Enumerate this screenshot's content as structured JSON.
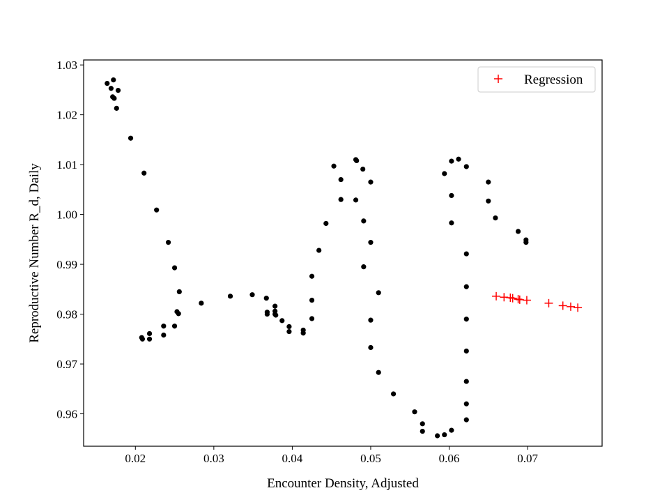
{
  "chart_data": {
    "type": "scatter",
    "title": "",
    "xlabel": "Encounter Density, Adjusted",
    "ylabel": "Reproductive Number R_d, Daily",
    "xlim": [
      0.0134,
      0.0795
    ],
    "ylim": [
      0.9535,
      1.031
    ],
    "xticks": [
      0.02,
      0.03,
      0.04,
      0.05,
      0.06,
      0.07
    ],
    "xtick_labels": [
      "0.02",
      "0.03",
      "0.04",
      "0.05",
      "0.06",
      "0.07"
    ],
    "yticks": [
      0.96,
      0.97,
      0.98,
      0.99,
      1.0,
      1.01,
      1.02,
      1.03
    ],
    "ytick_labels": [
      "0.96",
      "0.97",
      "0.98",
      "0.99",
      "1.00",
      "1.01",
      "1.02",
      "1.03"
    ],
    "grid": false,
    "legend_position": "top-right",
    "colors": {
      "observed": "#000000",
      "regression": "#ff0000"
    },
    "series": [
      {
        "marker": "dot",
        "color": "#000000",
        "points": [
          [
            0.0164,
            1.0263
          ],
          [
            0.0169,
            1.0253
          ],
          [
            0.0172,
            1.027
          ],
          [
            0.0171,
            1.0236
          ],
          [
            0.0173,
            1.0233
          ],
          [
            0.0178,
            1.0249
          ],
          [
            0.0176,
            1.0213
          ],
          [
            0.0194,
            1.0153
          ],
          [
            0.0211,
            1.0083
          ],
          [
            0.0227,
            1.0009
          ],
          [
            0.0242,
            0.9944
          ],
          [
            0.025,
            0.9893
          ],
          [
            0.0256,
            0.9845
          ],
          [
            0.0253,
            0.9805
          ],
          [
            0.0255,
            0.9801
          ],
          [
            0.025,
            0.9776
          ],
          [
            0.0236,
            0.9776
          ],
          [
            0.0236,
            0.9758
          ],
          [
            0.0218,
            0.9761
          ],
          [
            0.0218,
            0.975
          ],
          [
            0.0208,
            0.9753
          ],
          [
            0.0209,
            0.975
          ],
          [
            0.0284,
            0.9822
          ],
          [
            0.0321,
            0.9836
          ],
          [
            0.0349,
            0.9839
          ],
          [
            0.0367,
            0.9832
          ],
          [
            0.0378,
            0.9816
          ],
          [
            0.0368,
            0.9804
          ],
          [
            0.0368,
            0.98
          ],
          [
            0.0378,
            0.9806
          ],
          [
            0.0378,
            0.98
          ],
          [
            0.0379,
            0.9798
          ],
          [
            0.0387,
            0.9787
          ],
          [
            0.0396,
            0.9775
          ],
          [
            0.0396,
            0.9765
          ],
          [
            0.0414,
            0.9768
          ],
          [
            0.0414,
            0.9762
          ],
          [
            0.0425,
            0.9791
          ],
          [
            0.0425,
            0.9828
          ],
          [
            0.0425,
            0.9876
          ],
          [
            0.0434,
            0.9928
          ],
          [
            0.0443,
            0.9982
          ],
          [
            0.0453,
            1.0097
          ],
          [
            0.0462,
            1.007
          ],
          [
            0.0462,
            1.003
          ],
          [
            0.0481,
            1.011
          ],
          [
            0.0482,
            1.0108
          ],
          [
            0.0481,
            1.0029
          ],
          [
            0.049,
            1.0091
          ],
          [
            0.0491,
            0.9987
          ],
          [
            0.0491,
            0.9895
          ],
          [
            0.05,
            1.0065
          ],
          [
            0.05,
            0.9944
          ],
          [
            0.05,
            0.9788
          ],
          [
            0.05,
            0.9733
          ],
          [
            0.051,
            0.9843
          ],
          [
            0.051,
            0.9683
          ],
          [
            0.0529,
            0.964
          ],
          [
            0.0556,
            0.9604
          ],
          [
            0.0566,
            0.958
          ],
          [
            0.0566,
            0.9565
          ],
          [
            0.0585,
            0.9556
          ],
          [
            0.0594,
            0.9558
          ],
          [
            0.0603,
            0.9567
          ],
          [
            0.0594,
            1.0082
          ],
          [
            0.0603,
            1.0107
          ],
          [
            0.0603,
            1.0038
          ],
          [
            0.0603,
            0.9983
          ],
          [
            0.0612,
            1.0111
          ],
          [
            0.0622,
            1.0096
          ],
          [
            0.0622,
            0.9921
          ],
          [
            0.0622,
            0.9855
          ],
          [
            0.0622,
            0.979
          ],
          [
            0.0622,
            0.9726
          ],
          [
            0.0622,
            0.9665
          ],
          [
            0.0622,
            0.962
          ],
          [
            0.0622,
            0.9588
          ],
          [
            0.065,
            1.0065
          ],
          [
            0.065,
            1.0027
          ],
          [
            0.0659,
            0.9993
          ],
          [
            0.0688,
            0.9966
          ],
          [
            0.0698,
            0.9949
          ],
          [
            0.0698,
            0.9944
          ]
        ]
      },
      {
        "name": "Regression",
        "marker": "plus",
        "color": "#ff0000",
        "points": [
          [
            0.066,
            0.9836
          ],
          [
            0.067,
            0.9834
          ],
          [
            0.0678,
            0.9833
          ],
          [
            0.0681,
            0.9832
          ],
          [
            0.0688,
            0.983
          ],
          [
            0.069,
            0.9829
          ],
          [
            0.0699,
            0.9828
          ],
          [
            0.0727,
            0.9822
          ],
          [
            0.0745,
            0.9817
          ],
          [
            0.0755,
            0.9815
          ],
          [
            0.0764,
            0.9813
          ]
        ]
      }
    ]
  }
}
